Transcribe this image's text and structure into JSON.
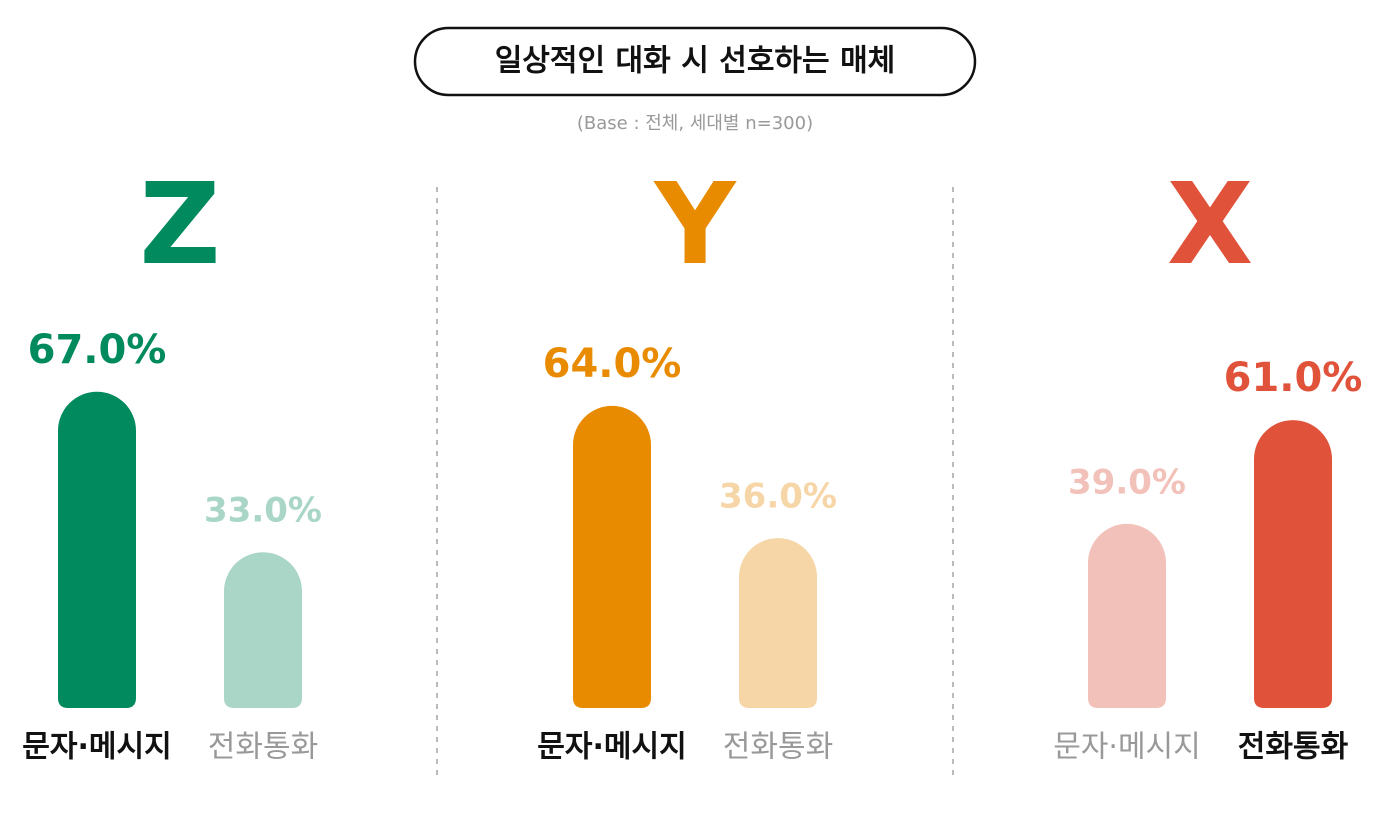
{
  "title": "일상적인 대화 시 선호하는 매체",
  "subtitle": "(Base : 전체, 세대별 n=300)",
  "chart_data": [
    {
      "type": "bar",
      "title": "Z",
      "categories": [
        "문자·메시지",
        "전화통화"
      ],
      "values": [
        67.0,
        33.0
      ],
      "value_labels": [
        "67.0%",
        "33.0%"
      ],
      "colors": [
        "#008a5e",
        "#a9d6c7"
      ]
    },
    {
      "type": "bar",
      "title": "Y",
      "categories": [
        "문자·메시지",
        "전화통화"
      ],
      "values": [
        64.0,
        36.0
      ],
      "value_labels": [
        "64.0%",
        "36.0%"
      ],
      "colors": [
        "#e98b00",
        "#f6d6a7"
      ]
    },
    {
      "type": "bar",
      "title": "X",
      "categories": [
        "문자·메시지",
        "전화통화"
      ],
      "values": [
        39.0,
        61.0
      ],
      "value_labels": [
        "39.0%",
        "61.0%"
      ],
      "colors": [
        "#f2c1b9",
        "#e0533a"
      ]
    }
  ]
}
